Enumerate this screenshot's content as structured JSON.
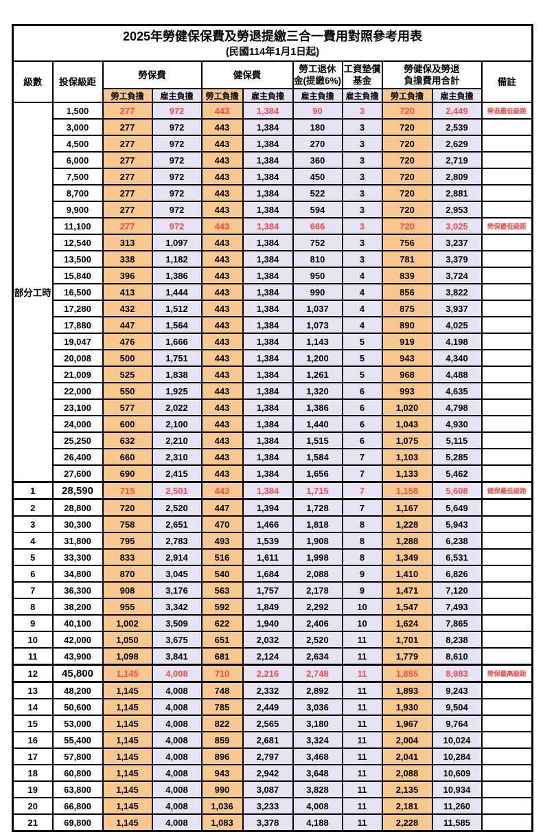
{
  "header": {
    "title": "2025年勞健保保費及勞退提繳三合一費用對照參考用表",
    "subtitle": "(民國114年1月1日起)"
  },
  "columns": {
    "level": "級數",
    "bracket": "投保級距",
    "labor_insurance": "勞保費",
    "health_insurance": "健保費",
    "pension_line1": "勞工退休",
    "pension_line2": "金(提繳6%)",
    "wage_fund_line1": "工資墊償",
    "wage_fund_line2": "基金",
    "total_line1": "勞健保及勞退",
    "total_line2": "負擔費用合計",
    "remark": "備註",
    "employee": "勞工負擔",
    "employer": "雇主負擔"
  },
  "part_time_label": "部分工時",
  "colors": {
    "employee_fill": "#F9C88F",
    "employer_fill": "#E6E4F4",
    "highlight_red": "#FB4A4A",
    "border": "#000000"
  },
  "rows": [
    {
      "level": "",
      "bracket": "1,500",
      "li_emp": "277",
      "li_er": "972",
      "hi_emp": "443",
      "hi_er": "1,384",
      "pension": "90",
      "fund": "3",
      "tot_emp": "720",
      "tot_er": "2,449",
      "remark": "勞退最低級距",
      "red": true
    },
    {
      "level": "",
      "bracket": "3,000",
      "li_emp": "277",
      "li_er": "972",
      "hi_emp": "443",
      "hi_er": "1,384",
      "pension": "180",
      "fund": "3",
      "tot_emp": "720",
      "tot_er": "2,539",
      "remark": ""
    },
    {
      "level": "",
      "bracket": "4,500",
      "li_emp": "277",
      "li_er": "972",
      "hi_emp": "443",
      "hi_er": "1,384",
      "pension": "270",
      "fund": "3",
      "tot_emp": "720",
      "tot_er": "2,629",
      "remark": ""
    },
    {
      "level": "",
      "bracket": "6,000",
      "li_emp": "277",
      "li_er": "972",
      "hi_emp": "443",
      "hi_er": "1,384",
      "pension": "360",
      "fund": "3",
      "tot_emp": "720",
      "tot_er": "2,719",
      "remark": ""
    },
    {
      "level": "",
      "bracket": "7,500",
      "li_emp": "277",
      "li_er": "972",
      "hi_emp": "443",
      "hi_er": "1,384",
      "pension": "450",
      "fund": "3",
      "tot_emp": "720",
      "tot_er": "2,809",
      "remark": ""
    },
    {
      "level": "",
      "bracket": "8,700",
      "li_emp": "277",
      "li_er": "972",
      "hi_emp": "443",
      "hi_er": "1,384",
      "pension": "522",
      "fund": "3",
      "tot_emp": "720",
      "tot_er": "2,881",
      "remark": ""
    },
    {
      "level": "",
      "bracket": "9,900",
      "li_emp": "277",
      "li_er": "972",
      "hi_emp": "443",
      "hi_er": "1,384",
      "pension": "594",
      "fund": "3",
      "tot_emp": "720",
      "tot_er": "2,953",
      "remark": ""
    },
    {
      "level": "",
      "bracket": "11,100",
      "li_emp": "277",
      "li_er": "972",
      "hi_emp": "443",
      "hi_er": "1,384",
      "pension": "666",
      "fund": "3",
      "tot_emp": "720",
      "tot_er": "3,025",
      "remark": "勞保最低級距",
      "red": true
    },
    {
      "level": "",
      "bracket": "12,540",
      "li_emp": "313",
      "li_er": "1,097",
      "hi_emp": "443",
      "hi_er": "1,384",
      "pension": "752",
      "fund": "3",
      "tot_emp": "756",
      "tot_er": "3,237",
      "remark": ""
    },
    {
      "level": "",
      "bracket": "13,500",
      "li_emp": "338",
      "li_er": "1,182",
      "hi_emp": "443",
      "hi_er": "1,384",
      "pension": "810",
      "fund": "3",
      "tot_emp": "781",
      "tot_er": "3,379",
      "remark": ""
    },
    {
      "level": "",
      "bracket": "15,840",
      "li_emp": "396",
      "li_er": "1,386",
      "hi_emp": "443",
      "hi_er": "1,384",
      "pension": "950",
      "fund": "4",
      "tot_emp": "839",
      "tot_er": "3,724",
      "remark": ""
    },
    {
      "level": "",
      "bracket": "16,500",
      "li_emp": "413",
      "li_er": "1,444",
      "hi_emp": "443",
      "hi_er": "1,384",
      "pension": "990",
      "fund": "4",
      "tot_emp": "856",
      "tot_er": "3,822",
      "remark": ""
    },
    {
      "level": "",
      "bracket": "17,280",
      "li_emp": "432",
      "li_er": "1,512",
      "hi_emp": "443",
      "hi_er": "1,384",
      "pension": "1,037",
      "fund": "4",
      "tot_emp": "875",
      "tot_er": "3,937",
      "remark": ""
    },
    {
      "level": "",
      "bracket": "17,880",
      "li_emp": "447",
      "li_er": "1,564",
      "hi_emp": "443",
      "hi_er": "1,384",
      "pension": "1,073",
      "fund": "4",
      "tot_emp": "890",
      "tot_er": "4,025",
      "remark": ""
    },
    {
      "level": "",
      "bracket": "19,047",
      "li_emp": "476",
      "li_er": "1,666",
      "hi_emp": "443",
      "hi_er": "1,384",
      "pension": "1,143",
      "fund": "5",
      "tot_emp": "919",
      "tot_er": "4,198",
      "remark": ""
    },
    {
      "level": "",
      "bracket": "20,008",
      "li_emp": "500",
      "li_er": "1,751",
      "hi_emp": "443",
      "hi_er": "1,384",
      "pension": "1,200",
      "fund": "5",
      "tot_emp": "943",
      "tot_er": "4,340",
      "remark": ""
    },
    {
      "level": "",
      "bracket": "21,009",
      "li_emp": "525",
      "li_er": "1,838",
      "hi_emp": "443",
      "hi_er": "1,384",
      "pension": "1,261",
      "fund": "5",
      "tot_emp": "968",
      "tot_er": "4,488",
      "remark": ""
    },
    {
      "level": "",
      "bracket": "22,000",
      "li_emp": "550",
      "li_er": "1,925",
      "hi_emp": "443",
      "hi_er": "1,384",
      "pension": "1,320",
      "fund": "6",
      "tot_emp": "993",
      "tot_er": "4,635",
      "remark": ""
    },
    {
      "level": "",
      "bracket": "23,100",
      "li_emp": "577",
      "li_er": "2,022",
      "hi_emp": "443",
      "hi_er": "1,384",
      "pension": "1,386",
      "fund": "6",
      "tot_emp": "1,020",
      "tot_er": "4,798",
      "remark": ""
    },
    {
      "level": "",
      "bracket": "24,000",
      "li_emp": "600",
      "li_er": "2,100",
      "hi_emp": "443",
      "hi_er": "1,384",
      "pension": "1,440",
      "fund": "6",
      "tot_emp": "1,043",
      "tot_er": "4,930",
      "remark": ""
    },
    {
      "level": "",
      "bracket": "25,250",
      "li_emp": "632",
      "li_er": "2,210",
      "hi_emp": "443",
      "hi_er": "1,384",
      "pension": "1,515",
      "fund": "6",
      "tot_emp": "1,075",
      "tot_er": "5,115",
      "remark": ""
    },
    {
      "level": "",
      "bracket": "26,400",
      "li_emp": "660",
      "li_er": "2,310",
      "hi_emp": "443",
      "hi_er": "1,384",
      "pension": "1,584",
      "fund": "7",
      "tot_emp": "1,103",
      "tot_er": "5,285",
      "remark": ""
    },
    {
      "level": "",
      "bracket": "27,600",
      "li_emp": "690",
      "li_er": "2,415",
      "hi_emp": "443",
      "hi_er": "1,384",
      "pension": "1,656",
      "fund": "7",
      "tot_emp": "1,133",
      "tot_er": "5,462",
      "remark": ""
    },
    {
      "level": "1",
      "bracket": "28,590",
      "li_emp": "715",
      "li_er": "2,501",
      "hi_emp": "443",
      "hi_er": "1,384",
      "pension": "1,715",
      "fund": "7",
      "tot_emp": "1,158",
      "tot_er": "5,608",
      "remark": "健保最低級距",
      "red": true,
      "emph": true
    },
    {
      "level": "2",
      "bracket": "28,800",
      "li_emp": "720",
      "li_er": "2,520",
      "hi_emp": "447",
      "hi_er": "1,394",
      "pension": "1,728",
      "fund": "7",
      "tot_emp": "1,167",
      "tot_er": "5,649",
      "remark": ""
    },
    {
      "level": "3",
      "bracket": "30,300",
      "li_emp": "758",
      "li_er": "2,651",
      "hi_emp": "470",
      "hi_er": "1,466",
      "pension": "1,818",
      "fund": "8",
      "tot_emp": "1,228",
      "tot_er": "5,943",
      "remark": ""
    },
    {
      "level": "4",
      "bracket": "31,800",
      "li_emp": "795",
      "li_er": "2,783",
      "hi_emp": "493",
      "hi_er": "1,539",
      "pension": "1,908",
      "fund": "8",
      "tot_emp": "1,288",
      "tot_er": "6,238",
      "remark": ""
    },
    {
      "level": "5",
      "bracket": "33,300",
      "li_emp": "833",
      "li_er": "2,914",
      "hi_emp": "516",
      "hi_er": "1,611",
      "pension": "1,998",
      "fund": "8",
      "tot_emp": "1,349",
      "tot_er": "6,531",
      "remark": ""
    },
    {
      "level": "6",
      "bracket": "34,800",
      "li_emp": "870",
      "li_er": "3,045",
      "hi_emp": "540",
      "hi_er": "1,684",
      "pension": "2,088",
      "fund": "9",
      "tot_emp": "1,410",
      "tot_er": "6,826",
      "remark": ""
    },
    {
      "level": "7",
      "bracket": "36,300",
      "li_emp": "908",
      "li_er": "3,176",
      "hi_emp": "563",
      "hi_er": "1,757",
      "pension": "2,178",
      "fund": "9",
      "tot_emp": "1,471",
      "tot_er": "7,120",
      "remark": ""
    },
    {
      "level": "8",
      "bracket": "38,200",
      "li_emp": "955",
      "li_er": "3,342",
      "hi_emp": "592",
      "hi_er": "1,849",
      "pension": "2,292",
      "fund": "10",
      "tot_emp": "1,547",
      "tot_er": "7,493",
      "remark": ""
    },
    {
      "level": "9",
      "bracket": "40,100",
      "li_emp": "1,002",
      "li_er": "3,509",
      "hi_emp": "622",
      "hi_er": "1,940",
      "pension": "2,406",
      "fund": "10",
      "tot_emp": "1,624",
      "tot_er": "7,865",
      "remark": ""
    },
    {
      "level": "10",
      "bracket": "42,000",
      "li_emp": "1,050",
      "li_er": "3,675",
      "hi_emp": "651",
      "hi_er": "2,032",
      "pension": "2,520",
      "fund": "11",
      "tot_emp": "1,701",
      "tot_er": "8,238",
      "remark": ""
    },
    {
      "level": "11",
      "bracket": "43,900",
      "li_emp": "1,098",
      "li_er": "3,841",
      "hi_emp": "681",
      "hi_er": "2,124",
      "pension": "2,634",
      "fund": "11",
      "tot_emp": "1,779",
      "tot_er": "8,610",
      "remark": ""
    },
    {
      "level": "12",
      "bracket": "45,800",
      "li_emp": "1,145",
      "li_er": "4,008",
      "hi_emp": "710",
      "hi_er": "2,216",
      "pension": "2,748",
      "fund": "11",
      "tot_emp": "1,855",
      "tot_er": "8,983",
      "remark": "勞保最高級距",
      "red": true,
      "emph": true
    },
    {
      "level": "13",
      "bracket": "48,200",
      "li_emp": "1,145",
      "li_er": "4,008",
      "hi_emp": "748",
      "hi_er": "2,332",
      "pension": "2,892",
      "fund": "11",
      "tot_emp": "1,893",
      "tot_er": "9,243",
      "remark": ""
    },
    {
      "level": "14",
      "bracket": "50,600",
      "li_emp": "1,145",
      "li_er": "4,008",
      "hi_emp": "785",
      "hi_er": "2,449",
      "pension": "3,036",
      "fund": "11",
      "tot_emp": "1,930",
      "tot_er": "9,504",
      "remark": ""
    },
    {
      "level": "15",
      "bracket": "53,000",
      "li_emp": "1,145",
      "li_er": "4,008",
      "hi_emp": "822",
      "hi_er": "2,565",
      "pension": "3,180",
      "fund": "11",
      "tot_emp": "1,967",
      "tot_er": "9,764",
      "remark": ""
    },
    {
      "level": "16",
      "bracket": "55,400",
      "li_emp": "1,145",
      "li_er": "4,008",
      "hi_emp": "859",
      "hi_er": "2,681",
      "pension": "3,324",
      "fund": "11",
      "tot_emp": "2,004",
      "tot_er": "10,024",
      "remark": ""
    },
    {
      "level": "17",
      "bracket": "57,800",
      "li_emp": "1,145",
      "li_er": "4,008",
      "hi_emp": "896",
      "hi_er": "2,797",
      "pension": "3,468",
      "fund": "11",
      "tot_emp": "2,041",
      "tot_er": "10,284",
      "remark": ""
    },
    {
      "level": "18",
      "bracket": "60,800",
      "li_emp": "1,145",
      "li_er": "4,008",
      "hi_emp": "943",
      "hi_er": "2,942",
      "pension": "3,648",
      "fund": "11",
      "tot_emp": "2,088",
      "tot_er": "10,609",
      "remark": ""
    },
    {
      "level": "19",
      "bracket": "63,800",
      "li_emp": "1,145",
      "li_er": "4,008",
      "hi_emp": "990",
      "hi_er": "3,087",
      "pension": "3,828",
      "fund": "11",
      "tot_emp": "2,135",
      "tot_er": "10,934",
      "remark": ""
    },
    {
      "level": "20",
      "bracket": "66,800",
      "li_emp": "1,145",
      "li_er": "4,008",
      "hi_emp": "1,036",
      "hi_er": "3,233",
      "pension": "4,008",
      "fund": "11",
      "tot_emp": "2,181",
      "tot_er": "11,260",
      "remark": ""
    },
    {
      "level": "21",
      "bracket": "69,800",
      "li_emp": "1,145",
      "li_er": "4,008",
      "hi_emp": "1,083",
      "hi_er": "3,378",
      "pension": "4,188",
      "fund": "11",
      "tot_emp": "2,228",
      "tot_er": "11,585",
      "remark": ""
    }
  ]
}
